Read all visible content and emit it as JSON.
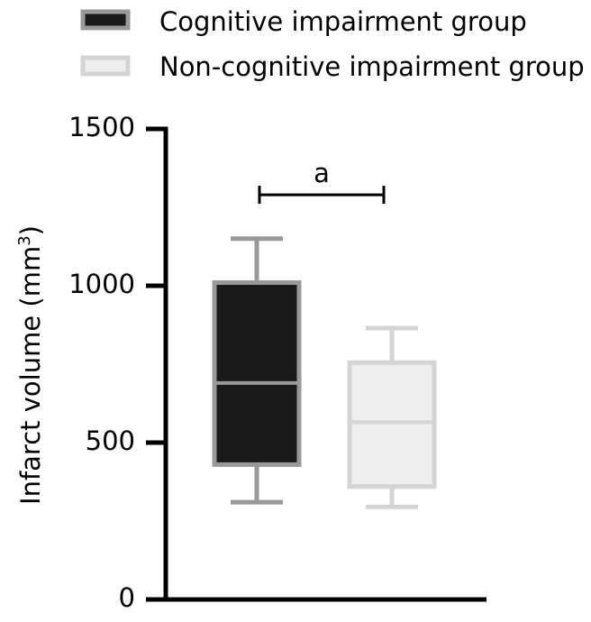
{
  "chart_data": {
    "type": "box",
    "title": "",
    "xlabel": "",
    "ylabel": "Infarct volume (mm",
    "ylabel_superscript": "3",
    "ylabel_suffix": ")",
    "ylim": [
      0,
      1500
    ],
    "y_ticks": [
      0,
      500,
      1000,
      1500
    ],
    "y_tick_labels": [
      "0",
      "500",
      "1000",
      "1500"
    ],
    "legend_position": "top",
    "series": [
      {
        "name": "Cognitive impairment group",
        "fill": "#1a1a1a",
        "stroke": "#999999",
        "median_color": "#999999",
        "whisker_low": 310,
        "q1": 430,
        "median": 690,
        "q3": 1010,
        "whisker_high": 1150
      },
      {
        "name": "Non-cognitive impairment group",
        "fill": "#eeeeee",
        "stroke": "#d4d4d4",
        "median_color": "#d4d4d4",
        "whisker_low": 295,
        "q1": 360,
        "median": 565,
        "q3": 755,
        "whisker_high": 865
      }
    ],
    "significance": {
      "label": "a",
      "between": [
        0,
        1
      ],
      "y": 1290
    }
  }
}
